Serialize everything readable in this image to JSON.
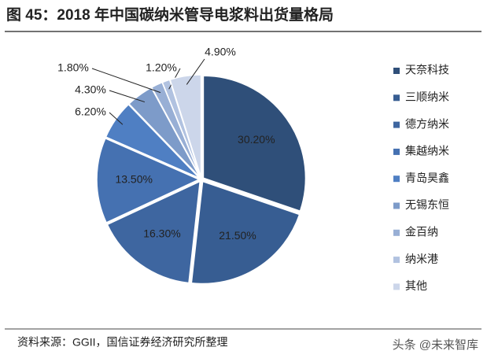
{
  "chart_data": {
    "type": "pie",
    "title": "图 45：2018 年中国碳纳米管导电浆料出货量格局",
    "categories": [
      "天奈科技",
      "三顺纳米",
      "德方纳米",
      "集越纳米",
      "青岛昊鑫",
      "无锡东恒",
      "金百纳",
      "纳米港",
      "其他"
    ],
    "values": [
      30.2,
      21.5,
      16.3,
      13.5,
      6.2,
      4.3,
      1.8,
      1.2,
      4.9
    ],
    "value_labels": [
      "30.20%",
      "21.50%",
      "16.30%",
      "13.50%",
      "6.20%",
      "4.30%",
      "1.80%",
      "1.20%",
      "4.90%"
    ],
    "colors": [
      "#2f4f79",
      "#375d92",
      "#3e66a0",
      "#4571b1",
      "#4f7fc3",
      "#7d9bc9",
      "#98afd5",
      "#b1c2e0",
      "#ccd6ea"
    ],
    "legend": "right",
    "source": "资料来源：GGII，国信证券经济研究所整理",
    "watermark": "头条 @未来智库"
  }
}
